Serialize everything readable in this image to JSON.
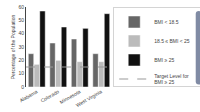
{
  "chart_data": {
    "type": "bar",
    "categories": [
      "Alabama",
      "Colorado",
      "Minnesota",
      "West Virginia"
    ],
    "series": [
      {
        "name": "BMI < 18.5",
        "color": "#666666",
        "values": [
          25,
          33,
          36,
          25
        ]
      },
      {
        "name": "18.5 ≤ BMI < 25",
        "color": "#bbbbbb",
        "values": [
          17,
          20,
          19,
          19
        ]
      },
      {
        "name": "BMI ≥ 25",
        "color": "#111111",
        "values": [
          57,
          45,
          44,
          55
        ]
      }
    ],
    "reference_lines": [
      {
        "name": "Target Level for\nBMI ≥ 25",
        "value": 15,
        "color": "#999999",
        "line_style": "dashed"
      }
    ],
    "ylabel": "Percentage of the Population",
    "ylim": [
      0,
      60
    ],
    "yticks": [
      0,
      10,
      20,
      30,
      40,
      50,
      60
    ],
    "grid": false,
    "legend": "right"
  }
}
